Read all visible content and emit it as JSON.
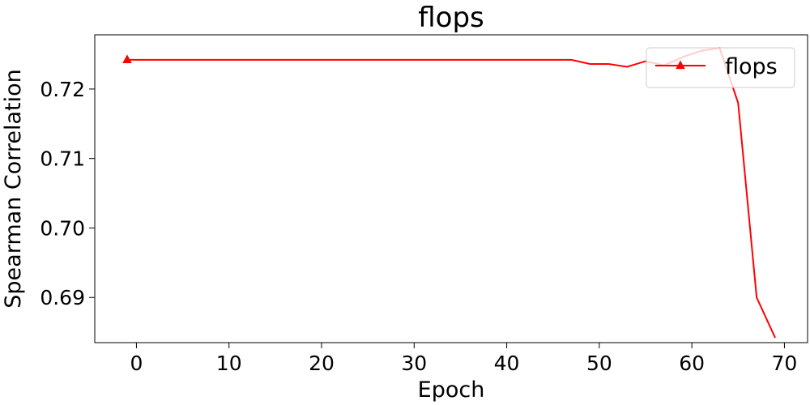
{
  "chart_data": {
    "type": "line",
    "title": "flops",
    "xlabel": "Epoch",
    "ylabel": "Spearman Correlation",
    "xlim": [
      -4.5,
      72.5
    ],
    "ylim": [
      0.6835,
      0.7278
    ],
    "xticks": [
      0,
      10,
      20,
      30,
      40,
      50,
      60,
      70
    ],
    "yticks": [
      0.69,
      0.7,
      0.71,
      0.72
    ],
    "ytick_labels": [
      "0.69",
      "0.70",
      "0.71",
      "0.72"
    ],
    "grid": false,
    "legend": {
      "position": "top-right"
    },
    "series": [
      {
        "name": "flops",
        "color": "#ff0000",
        "marker": "triangle",
        "x": [
          -1,
          1,
          3,
          5,
          7,
          9,
          11,
          13,
          15,
          17,
          19,
          21,
          23,
          25,
          27,
          29,
          31,
          33,
          35,
          37,
          39,
          41,
          43,
          45,
          47,
          49,
          51,
          53,
          55,
          57,
          59,
          61,
          63,
          65,
          67,
          69
        ],
        "y": [
          0.7242,
          0.7242,
          0.7242,
          0.7242,
          0.7242,
          0.7242,
          0.7242,
          0.7242,
          0.7242,
          0.7242,
          0.7242,
          0.7242,
          0.7242,
          0.7242,
          0.7242,
          0.7242,
          0.7242,
          0.7242,
          0.7242,
          0.7242,
          0.7242,
          0.7242,
          0.7242,
          0.7242,
          0.7242,
          0.7236,
          0.7236,
          0.7232,
          0.724,
          0.7234,
          0.7246,
          0.7255,
          0.7259,
          0.718,
          0.69,
          0.6842
        ]
      }
    ]
  }
}
